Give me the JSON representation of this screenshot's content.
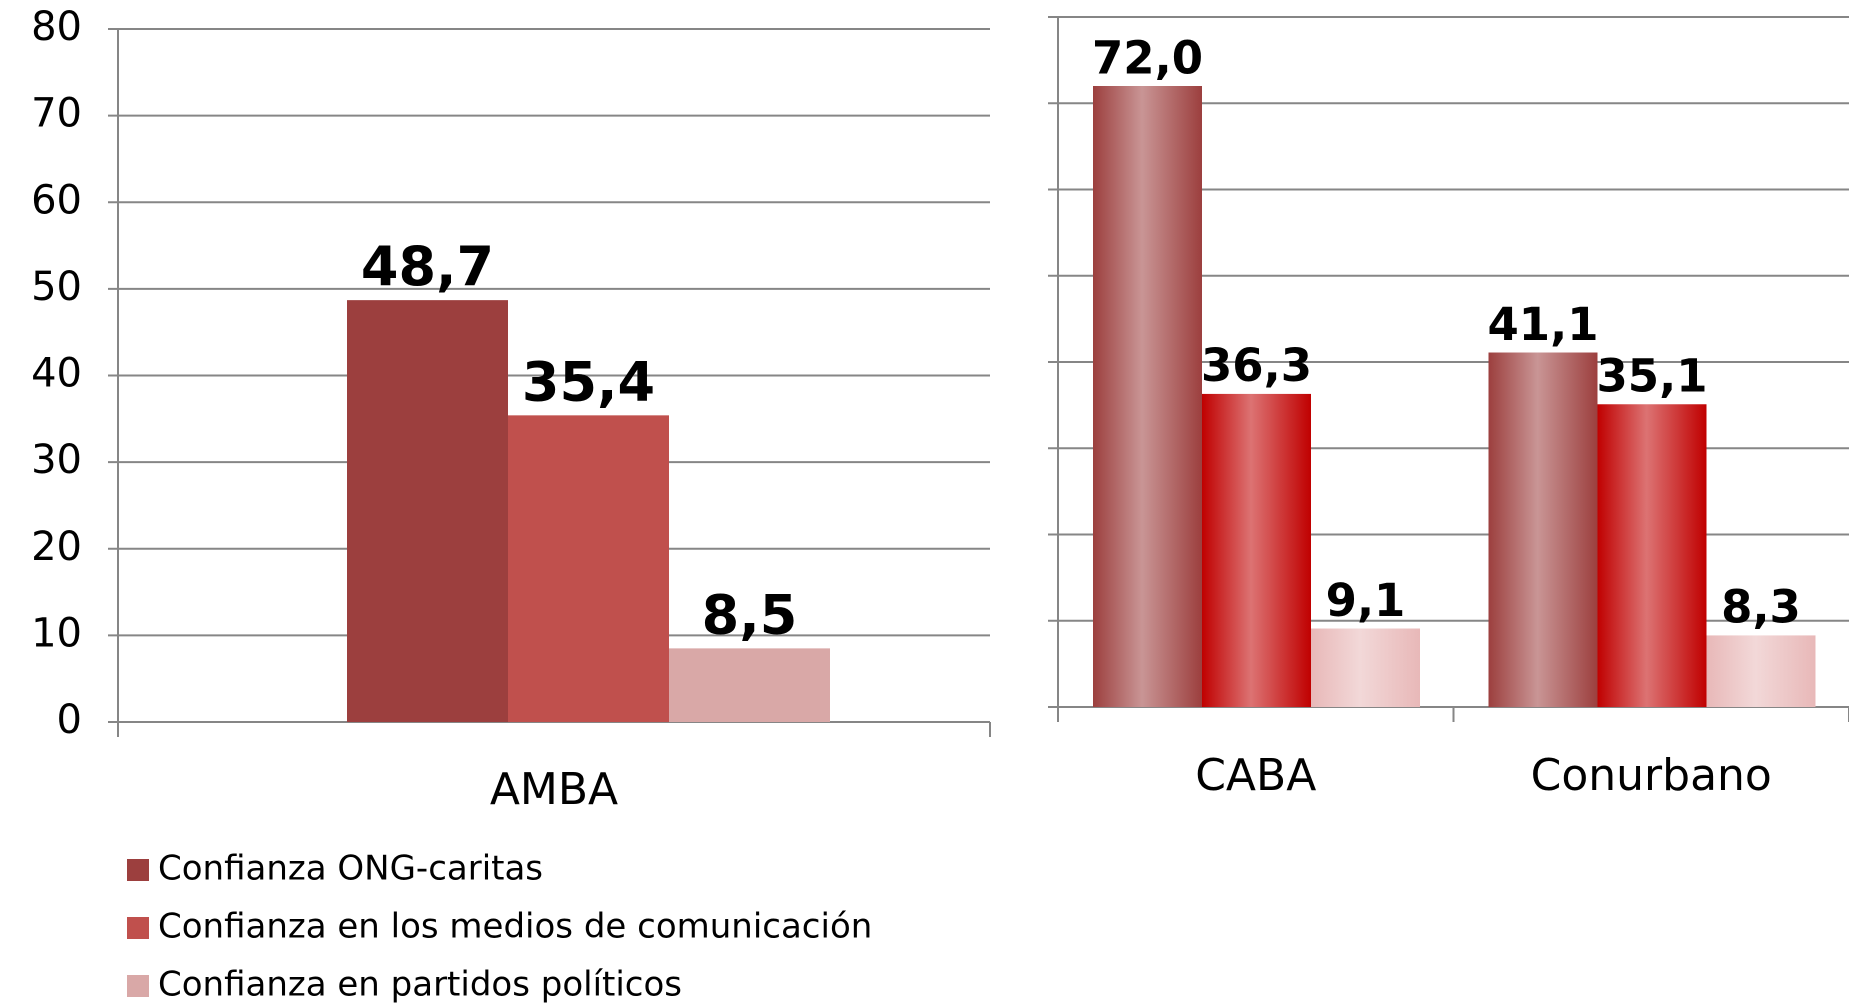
{
  "chart_data": [
    {
      "type": "bar",
      "categories": [
        "AMBA"
      ],
      "series": [
        {
          "name": "Confianza ONG-caritas",
          "color": "#9c3f3e",
          "values": [
            48.7
          ],
          "value_labels": [
            "48,7"
          ]
        },
        {
          "name": "Confianza en los medios de comunicación",
          "color": "#c0504d",
          "values": [
            35.4
          ],
          "value_labels": [
            "35,4"
          ]
        },
        {
          "name": "Confianza en partidos políticos",
          "color": "#d9a8a7",
          "values": [
            8.5
          ],
          "value_labels": [
            "8,5"
          ]
        }
      ],
      "ylim": [
        0,
        80
      ],
      "yticks": [
        0,
        10,
        20,
        30,
        40,
        50,
        60,
        70,
        80
      ],
      "grid": true,
      "legend": "bottom-left"
    },
    {
      "type": "bar",
      "categories": [
        "CABA",
        "Conurbano"
      ],
      "gradient": true,
      "series": [
        {
          "color": "#9c3f3e",
          "values": [
            72.0,
            41.1
          ],
          "value_labels": [
            "72,0",
            "41,1"
          ]
        },
        {
          "color": "#c00000",
          "values": [
            36.3,
            35.1
          ],
          "value_labels": [
            "36,3",
            "35,1"
          ]
        },
        {
          "color": "#e8b8b8",
          "values": [
            9.1,
            8.3
          ],
          "value_labels": [
            "9,1",
            "8,3"
          ]
        }
      ],
      "ylim": [
        0,
        80
      ],
      "yticks": [
        0,
        10,
        20,
        30,
        40,
        50,
        60,
        70,
        80
      ],
      "grid": true
    }
  ]
}
